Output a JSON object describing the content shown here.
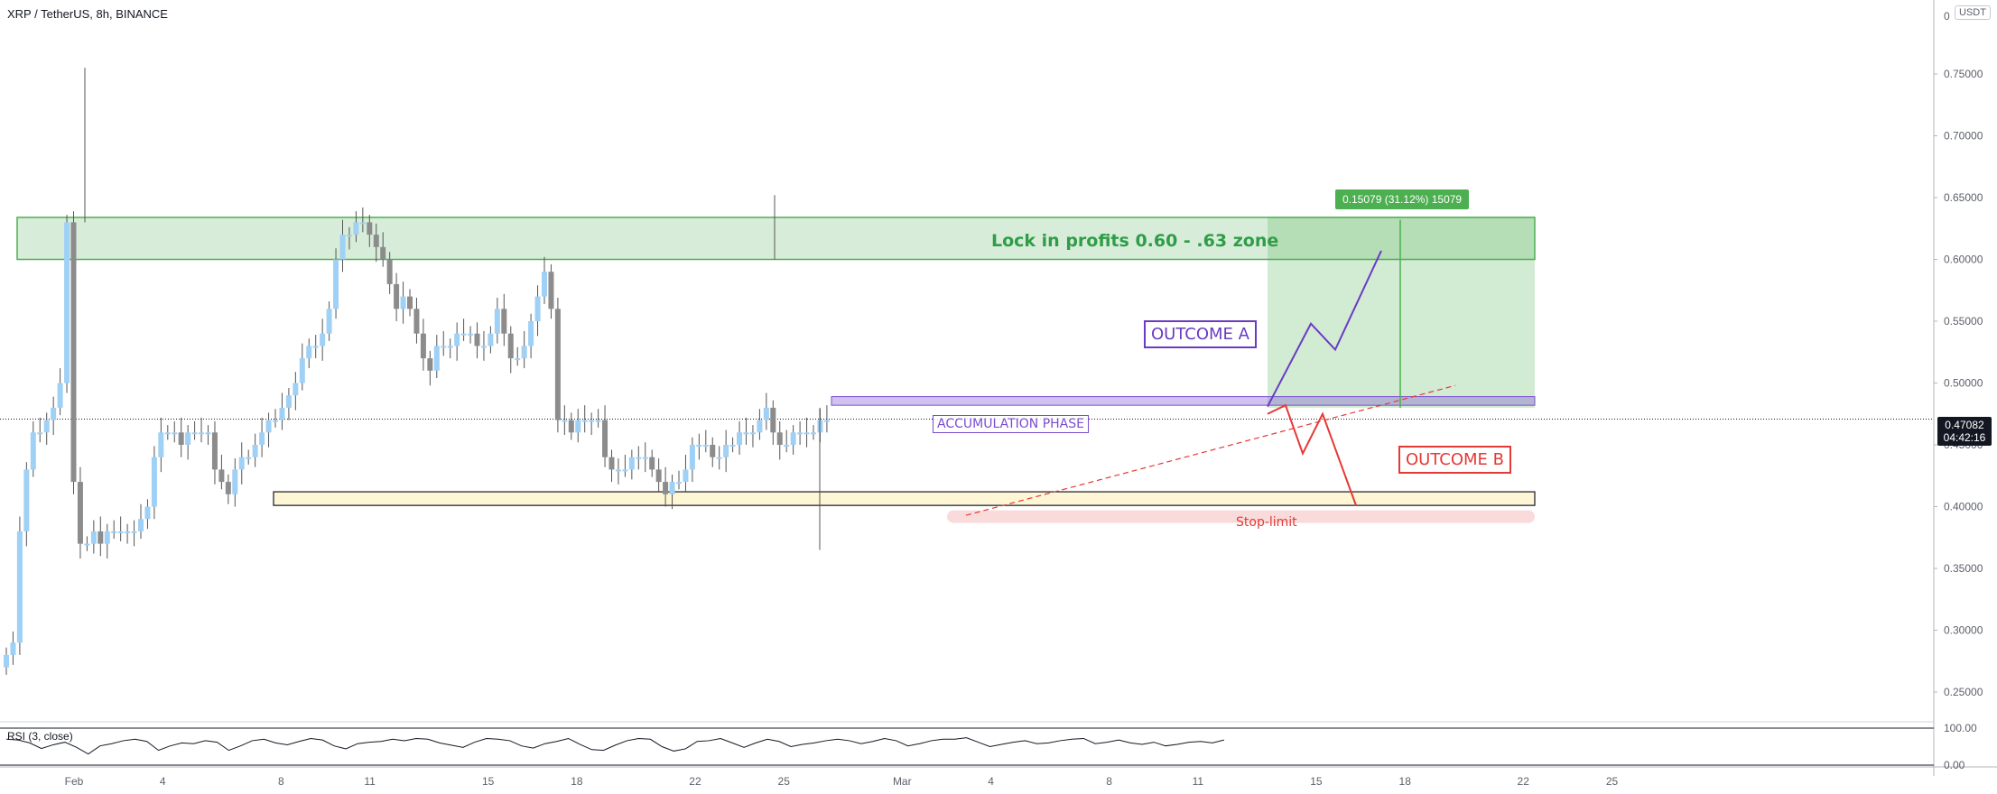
{
  "header": {
    "title": "XRP / TetherUS, 8h, BINANCE",
    "currency": "USDT"
  },
  "last_price": {
    "value": "0.47082",
    "countdown": "04:42:16"
  },
  "annotations": {
    "take_profit_zone": "Lock in profits 0.60 - .63 zone",
    "outcome_a": "OUTCOME A",
    "outcome_b": "OUTCOME B",
    "accumulation": "ACCUMULATION PHASE",
    "stop_limit": "Stop-limit",
    "measure": "0.15079 (31.12%) 15079"
  },
  "rsi": {
    "label": "RSI (3, close)",
    "levels": [
      "100.00",
      "0.00"
    ]
  },
  "colors": {
    "up_candle": "#9fd0f5",
    "down_candle": "#8c8c8c",
    "tp_zone": "#4caf50",
    "support_zone": "#fff6d6",
    "outcome_a": "#6a3bc4",
    "outcome_b": "#e53935"
  },
  "chart_data": {
    "type": "candlestick",
    "title": "XRP / TetherUS, 8h, BINANCE",
    "ylim": [
      0.22,
      0.78
    ],
    "y_ticks": [
      "0.75000",
      "0.70000",
      "0.65000",
      "0.60000",
      "0.55000",
      "0.50000",
      "0.45000",
      "0.40000",
      "0.35000",
      "0.30000",
      "0.25000"
    ],
    "y_tick_values": [
      0.75,
      0.7,
      0.65,
      0.6,
      0.55,
      0.5,
      0.45,
      0.4,
      0.35,
      0.3,
      0.25
    ],
    "top_tick": "0",
    "x_ticks": [
      "Feb",
      "4",
      "8",
      "11",
      "15",
      "18",
      "22",
      "25",
      "Mar",
      "4",
      "8",
      "11",
      "15",
      "18",
      "22",
      "25"
    ],
    "x_tick_index": [
      0,
      9,
      21,
      30,
      42,
      51,
      63,
      72,
      84,
      93,
      105,
      114,
      126,
      135,
      147,
      156
    ],
    "candles_start_index": -6,
    "closes": [
      0.28,
      0.29,
      0.38,
      0.43,
      0.46,
      0.46,
      0.47,
      0.48,
      0.5,
      0.63,
      0.42,
      0.37,
      0.37,
      0.38,
      0.37,
      0.38,
      0.38,
      0.38,
      0.38,
      0.38,
      0.39,
      0.4,
      0.44,
      0.46,
      0.46,
      0.46,
      0.45,
      0.46,
      0.46,
      0.46,
      0.46,
      0.43,
      0.42,
      0.41,
      0.43,
      0.44,
      0.44,
      0.45,
      0.46,
      0.47,
      0.47,
      0.48,
      0.49,
      0.5,
      0.52,
      0.53,
      0.53,
      0.54,
      0.56,
      0.6,
      0.62,
      0.62,
      0.63,
      0.63,
      0.62,
      0.61,
      0.6,
      0.58,
      0.56,
      0.57,
      0.56,
      0.54,
      0.52,
      0.51,
      0.53,
      0.53,
      0.53,
      0.54,
      0.54,
      0.54,
      0.53,
      0.53,
      0.54,
      0.56,
      0.54,
      0.52,
      0.52,
      0.53,
      0.55,
      0.57,
      0.59,
      0.56,
      0.47,
      0.47,
      0.46,
      0.47,
      0.47,
      0.47,
      0.47,
      0.44,
      0.43,
      0.43,
      0.43,
      0.44,
      0.44,
      0.44,
      0.43,
      0.42,
      0.41,
      0.42,
      0.42,
      0.43,
      0.45,
      0.45,
      0.45,
      0.44,
      0.44,
      0.45,
      0.45,
      0.46,
      0.46,
      0.46,
      0.47,
      0.48,
      0.46,
      0.45,
      0.45,
      0.46,
      0.46,
      0.46,
      0.46,
      0.47,
      0.47
    ],
    "rsi_values": [
      70,
      68,
      60,
      45,
      55,
      62,
      48,
      30,
      52,
      58,
      66,
      70,
      64,
      40,
      52,
      60,
      58,
      66,
      62,
      40,
      52,
      66,
      70,
      60,
      55,
      64,
      72,
      68,
      52,
      44,
      58,
      62,
      64,
      70,
      66,
      72,
      70,
      60,
      54,
      48,
      62,
      72,
      70,
      66,
      52,
      46,
      58,
      64,
      72,
      56,
      42,
      40,
      54,
      66,
      72,
      70,
      50,
      38,
      44,
      64,
      66,
      72,
      60,
      48,
      60,
      70,
      64,
      50,
      56,
      60,
      66,
      70,
      66,
      58,
      64,
      72,
      66,
      52,
      58,
      66,
      70,
      70,
      74,
      62,
      50,
      56,
      62,
      66,
      58,
      60,
      66,
      70,
      72,
      58,
      62,
      68,
      60,
      56,
      62,
      52,
      56,
      62,
      64,
      60,
      68
    ]
  }
}
